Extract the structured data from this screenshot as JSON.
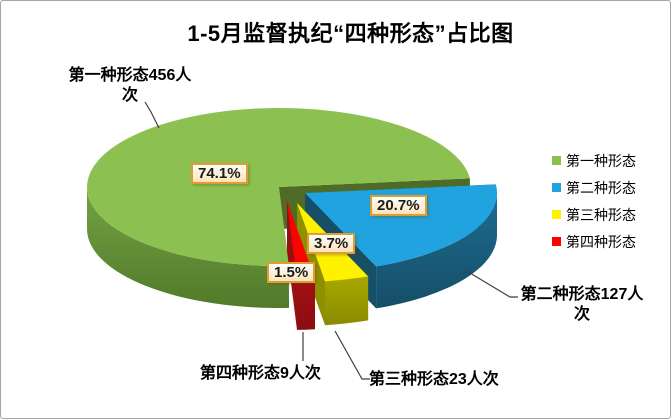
{
  "title": "1-5月监督执纪“四种形态”占比图",
  "chart_data": {
    "type": "pie",
    "effect_3d": true,
    "exploded": true,
    "title": "1-5月监督执纪“四种形态”占比图",
    "legend_position": "right",
    "rotation_deg": 177,
    "unit": "人次",
    "slices": [
      {
        "label": "第一种形态",
        "count": 456,
        "pct": 74.1,
        "pct_label": "74.1%",
        "callout": "第一种形态456人次",
        "color": "#8cc152",
        "side_color": "#74a244",
        "side_dark": "#527a2a",
        "cut_color": "#4e6b28"
      },
      {
        "label": "第二种形态",
        "count": 127,
        "pct": 20.7,
        "pct_label": "20.7%",
        "callout": "第二种形态127人次",
        "color": "#20a3de",
        "side_color": "#1d6c90",
        "side_dark": "#154e68",
        "cut_color": "#174f66"
      },
      {
        "label": "第三种形态",
        "count": 23,
        "pct": 3.7,
        "pct_label": "3.7%",
        "callout": "第三种形态23人次",
        "color": "#fef200",
        "side_color": "#a8a800",
        "side_dark": "#8a8a00",
        "cut_color": "#8f8f00"
      },
      {
        "label": "第四种形态",
        "count": 9,
        "pct": 1.5,
        "pct_label": "1.5%",
        "callout": "第四种形态9人次",
        "color": "#fb0300",
        "side_color": "#a31014",
        "side_dark": "#8c0d10",
        "cut_color": "#991013"
      }
    ]
  }
}
